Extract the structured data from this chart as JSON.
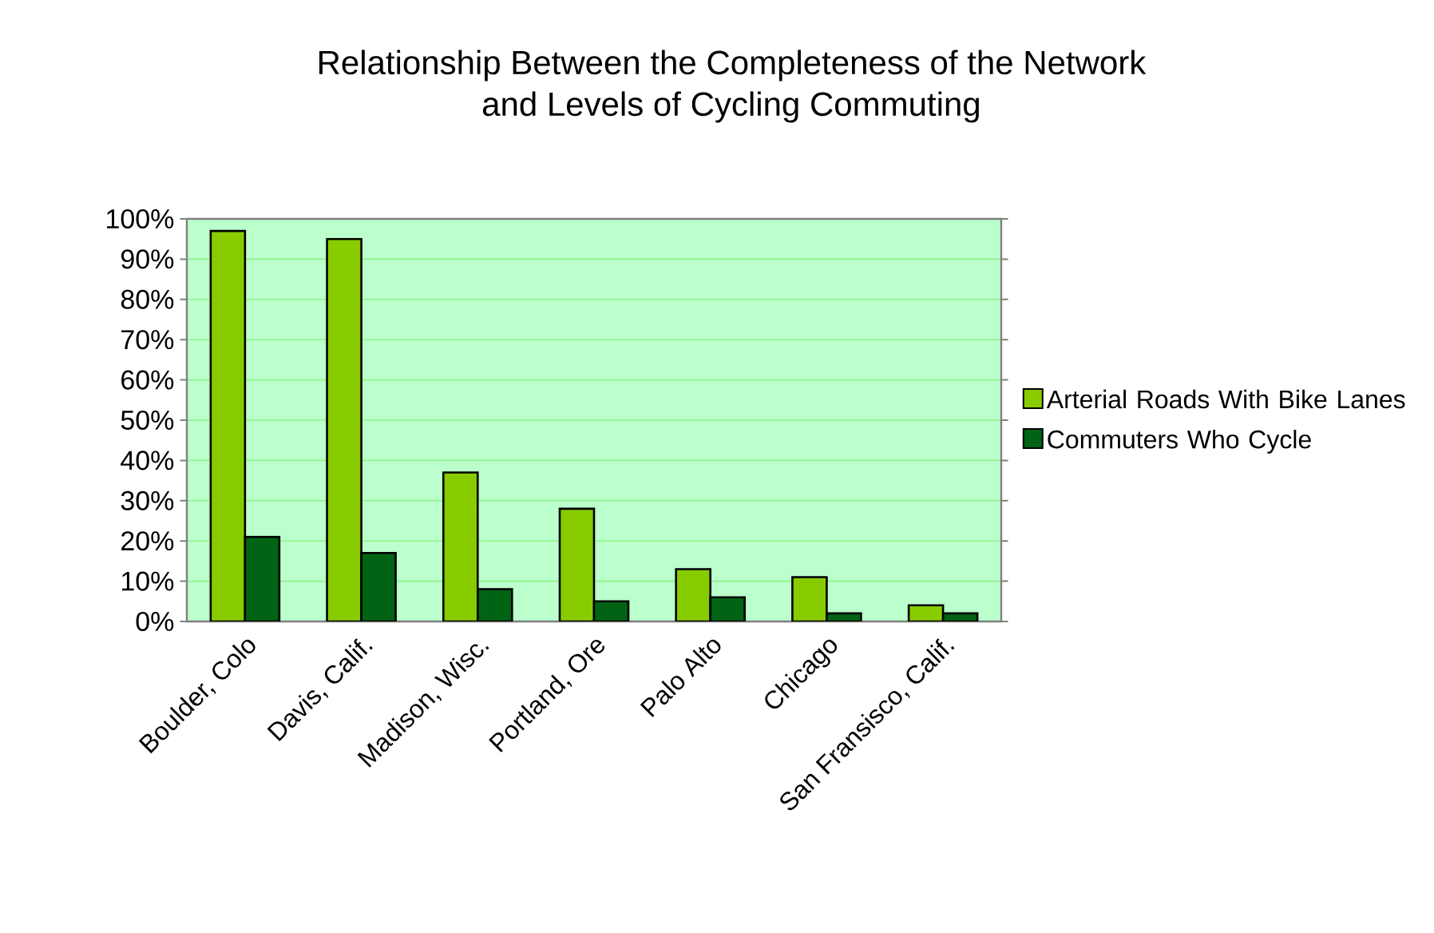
{
  "chart_data": {
    "type": "bar",
    "title": "Relationship Between the Completeness of the Network\nand Levels of Cycling Commuting",
    "categories": [
      "Boulder, Colo",
      "Davis, Calif.",
      "Madison, Wisc.",
      "Portland, Ore",
      "Palo Alto",
      "Chicago",
      "San Fransisco, Calif."
    ],
    "series": [
      {
        "name": "Arterial Roads With Bike Lanes",
        "color": "#88cc00",
        "values": [
          97,
          95,
          37,
          28,
          13,
          11,
          4
        ]
      },
      {
        "name": "Commuters Who Cycle",
        "color": "#006414",
        "values": [
          21,
          17,
          8,
          5,
          6,
          2,
          2
        ]
      }
    ],
    "ylim": [
      0,
      100
    ],
    "yticks": [
      {
        "value": 0,
        "label": "0%"
      },
      {
        "value": 10,
        "label": "10%"
      },
      {
        "value": 20,
        "label": "20%"
      },
      {
        "value": 30,
        "label": "30%"
      },
      {
        "value": 40,
        "label": "40%"
      },
      {
        "value": 50,
        "label": "50%"
      },
      {
        "value": 60,
        "label": "60%"
      },
      {
        "value": 70,
        "label": "70%"
      },
      {
        "value": 80,
        "label": "80%"
      },
      {
        "value": 90,
        "label": "90%"
      },
      {
        "value": 100,
        "label": "100%"
      }
    ],
    "grid": "y",
    "legend": "right"
  }
}
